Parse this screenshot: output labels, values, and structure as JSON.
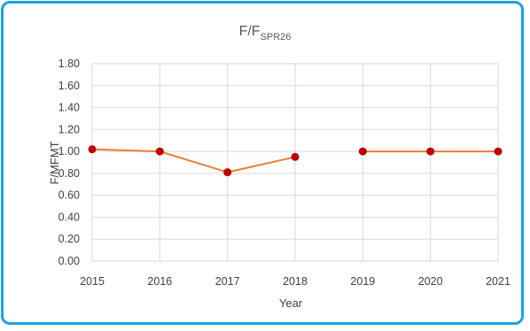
{
  "chart_data": {
    "type": "line",
    "title_main": "F/F",
    "title_sub": "SPR26",
    "xlabel": "Year",
    "ylabel": "F/MFMT",
    "categories": [
      "2015",
      "2016",
      "2017",
      "2018",
      "2019",
      "2020",
      "2021"
    ],
    "series": [
      {
        "values": [
          1.02,
          1.0,
          0.81,
          0.95,
          1.0,
          1.0,
          1.0
        ]
      }
    ],
    "segments_connected": [
      true,
      true,
      true,
      false,
      true,
      true
    ],
    "ylim": [
      0,
      1.8
    ],
    "yticks": [
      "0.00",
      "0.20",
      "0.40",
      "0.60",
      "0.80",
      "1.00",
      "1.20",
      "1.40",
      "1.60",
      "1.80"
    ],
    "grid": true,
    "colors": {
      "line": "#ed7d31",
      "marker": "#c00000",
      "frame": "#1aa3e0",
      "grid": "#d9d9d9"
    }
  }
}
